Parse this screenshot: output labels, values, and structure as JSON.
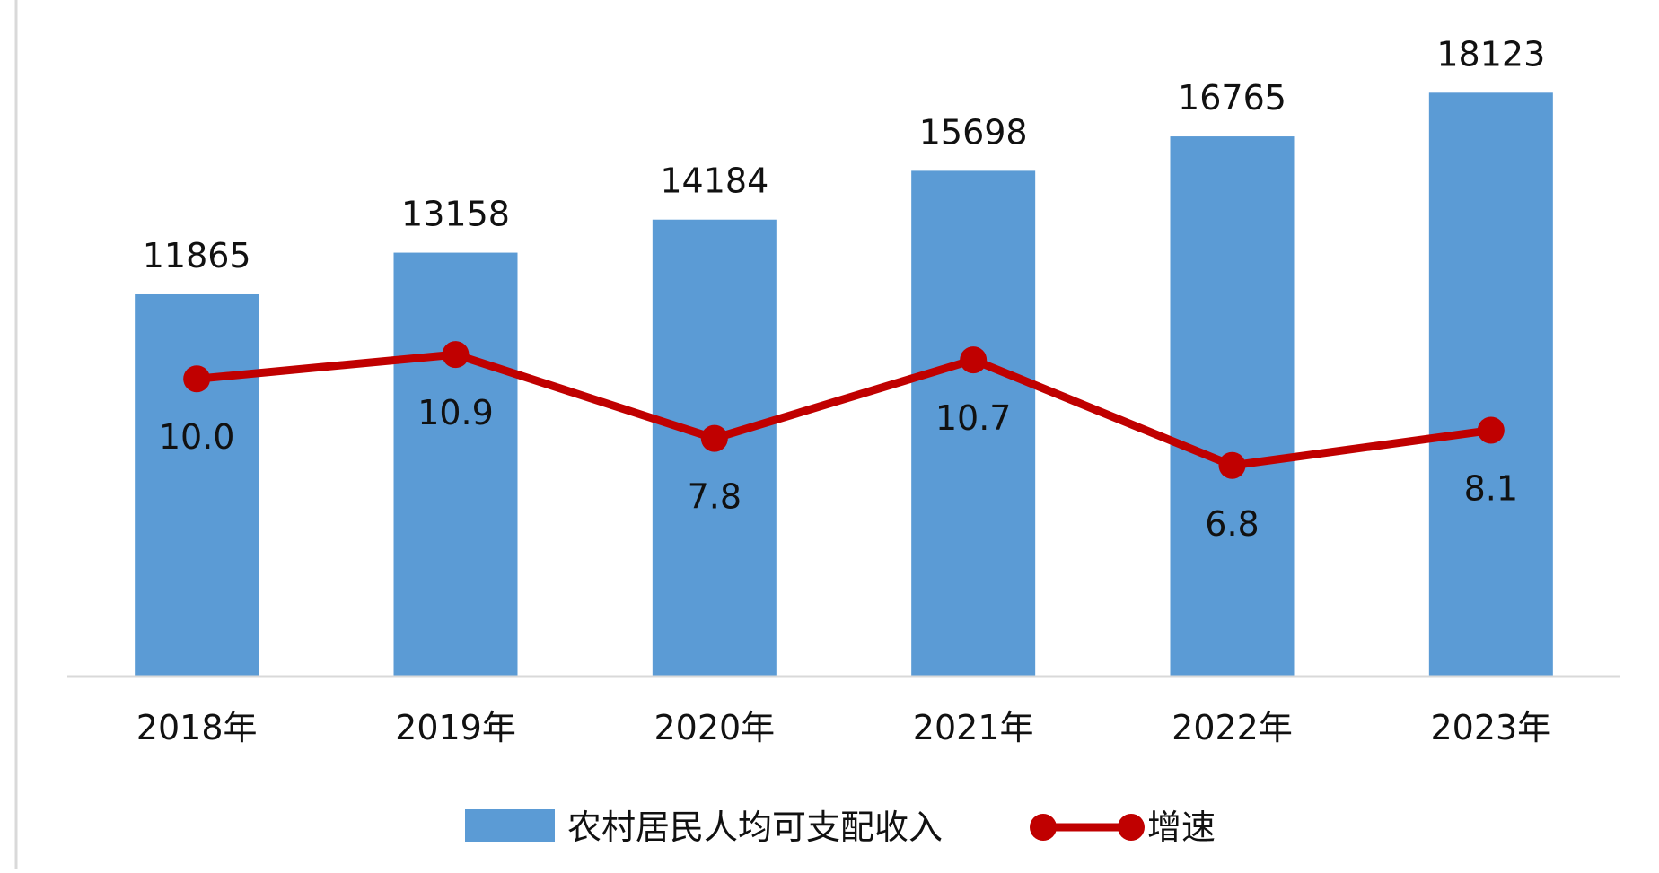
{
  "chart_data": {
    "type": "bar",
    "title": "",
    "xlabel": "",
    "ylabel": "",
    "categories": [
      "2018年",
      "2019年",
      "2020年",
      "2021年",
      "2022年",
      "2023年"
    ],
    "series": [
      {
        "name": "农村居民人均可支配收入",
        "kind": "bar",
        "values": [
          11865,
          13158,
          14184,
          15698,
          16765,
          18123
        ],
        "color": "#5B9BD5"
      },
      {
        "name": "增速",
        "kind": "line",
        "values": [
          10.0,
          10.9,
          7.8,
          10.7,
          6.8,
          8.1
        ],
        "value_labels": [
          "10.0",
          "10.9",
          "7.8",
          "10.7",
          "6.8",
          "8.1"
        ],
        "color": "#C00000"
      }
    ],
    "bar_axis_range": [
      0,
      21000
    ],
    "rate_axis_range": [
      -1,
      24
    ],
    "grid": false,
    "legend_position": "bottom"
  }
}
